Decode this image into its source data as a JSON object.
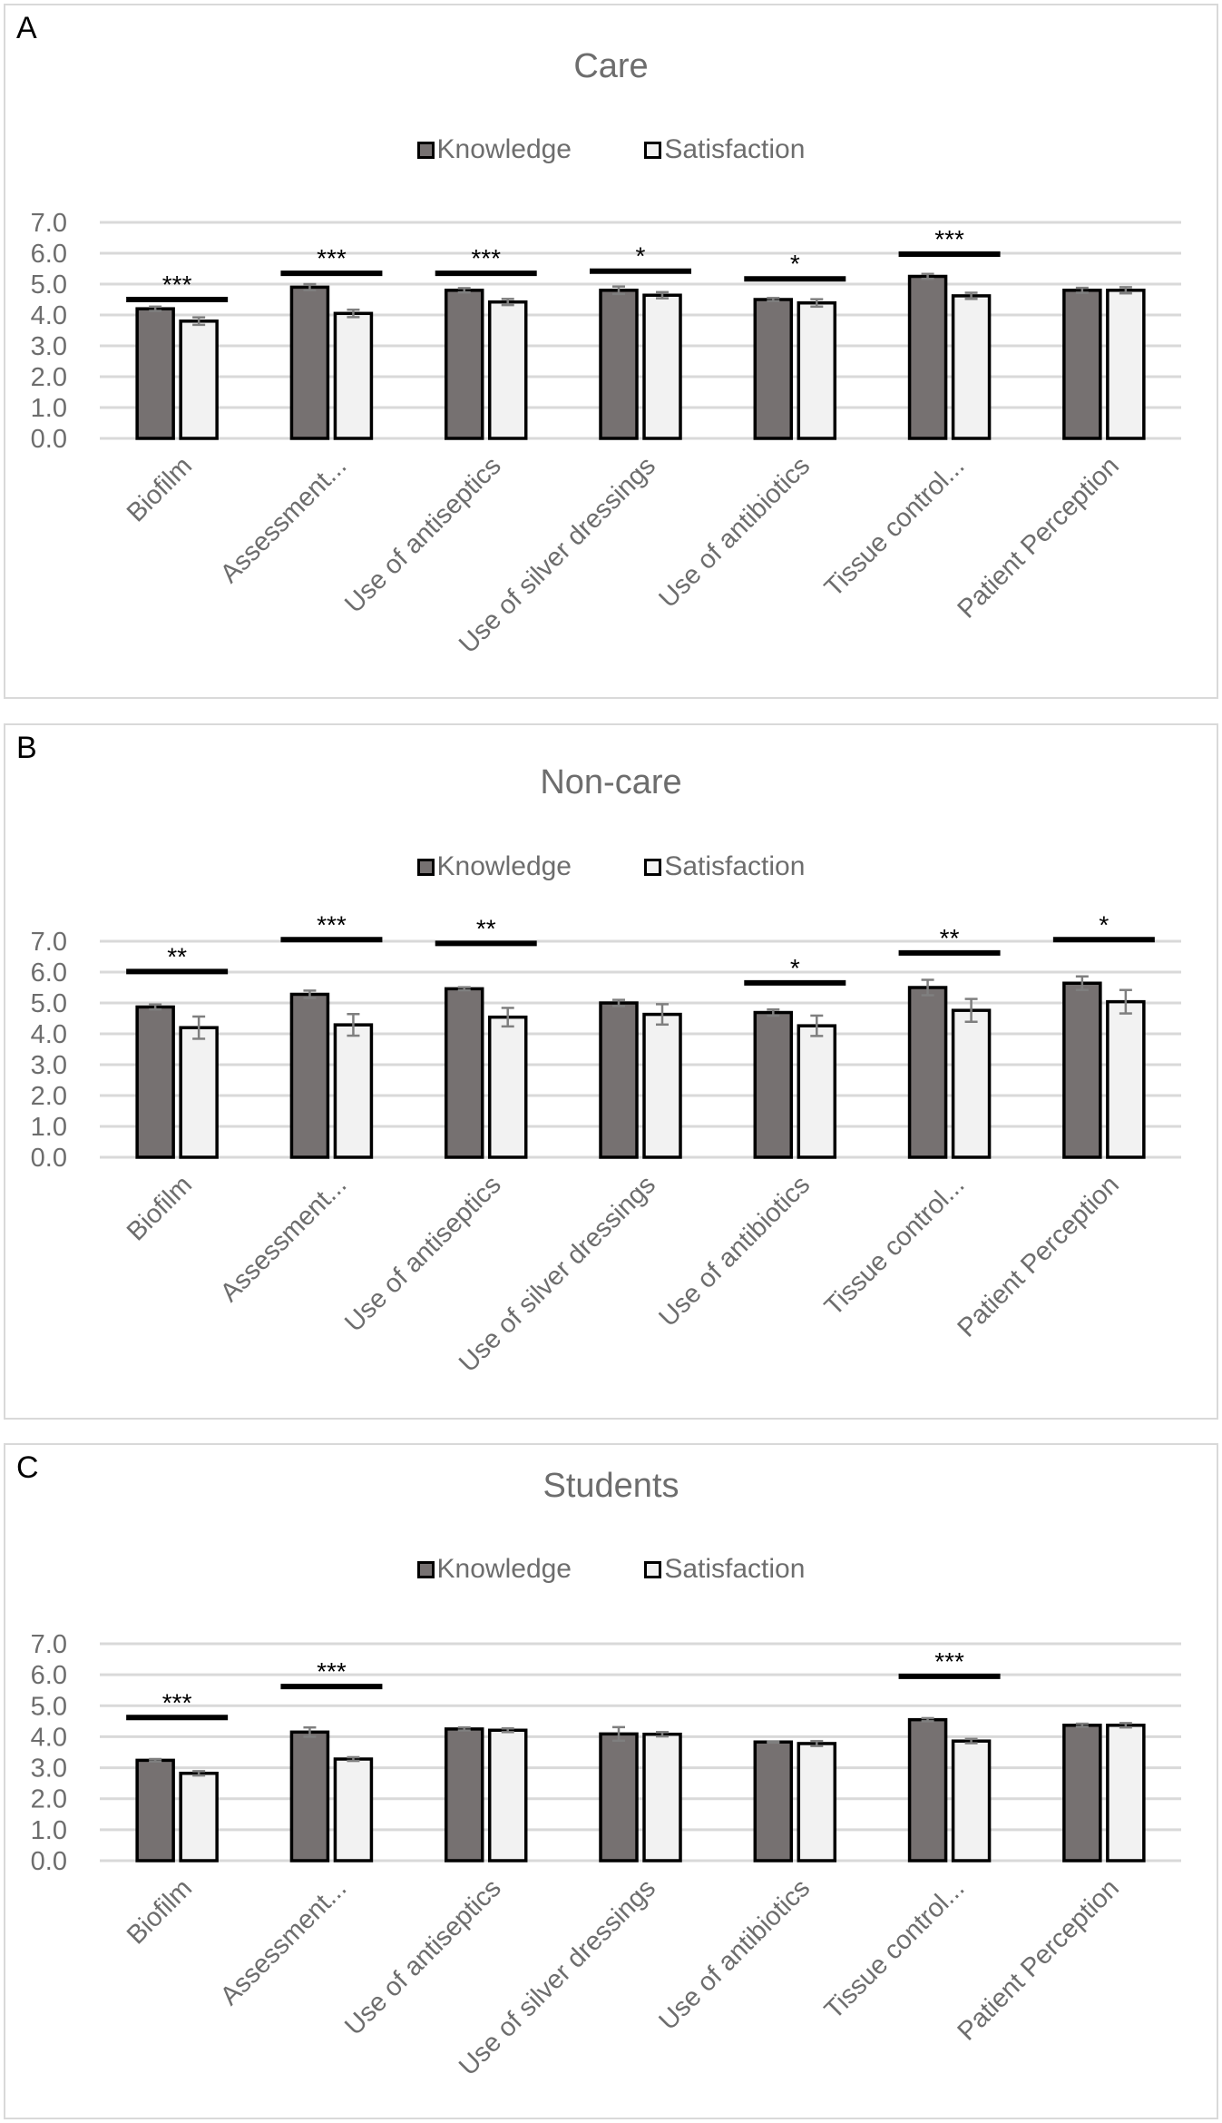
{
  "colors": {
    "knowledge": "#767171",
    "satisfaction": "#f2f2f2",
    "outline": "#000000",
    "errorbar": "#7f7f7f",
    "grid": "#d9d9d9",
    "text": "#6d6d6d"
  },
  "legend": {
    "knowledge": "Knowledge",
    "satisfaction": "Satisfaction"
  },
  "chart_data": [
    {
      "panel": "A",
      "type": "bar",
      "title": "Care",
      "xlabel": "",
      "ylabel": "",
      "ylim": [
        0,
        7
      ],
      "yticks": [
        "0.0",
        "1.0",
        "2.0",
        "3.0",
        "4.0",
        "5.0",
        "6.0",
        "7.0"
      ],
      "grid": true,
      "legend_position": "top-center",
      "categories": [
        "Biofilm",
        "Assessment...",
        "Use of antiseptics",
        "Use of silver dressings",
        "Use of antibiotics",
        "Tissue control...",
        "Patient Perception"
      ],
      "series": [
        {
          "name": "Knowledge",
          "values": [
            4.2,
            4.9,
            4.8,
            4.8,
            4.5,
            5.25,
            4.8
          ],
          "errors": [
            0.07,
            0.1,
            0.07,
            0.12,
            0.05,
            0.08,
            0.08
          ]
        },
        {
          "name": "Satisfaction",
          "values": [
            3.8,
            4.05,
            4.42,
            4.64,
            4.39,
            4.62,
            4.8
          ],
          "errors": [
            0.12,
            0.12,
            0.1,
            0.1,
            0.12,
            0.1,
            0.1
          ]
        }
      ],
      "significance": [
        {
          "category": 0,
          "label": "***",
          "y": 4.5
        },
        {
          "category": 1,
          "label": "***",
          "y": 5.35
        },
        {
          "category": 2,
          "label": "***",
          "y": 5.35
        },
        {
          "category": 3,
          "label": "*",
          "y": 5.42
        },
        {
          "category": 4,
          "label": "*",
          "y": 5.17
        },
        {
          "category": 5,
          "label": "***",
          "y": 5.97
        }
      ]
    },
    {
      "panel": "B",
      "type": "bar",
      "title": "Non-care",
      "xlabel": "",
      "ylabel": "",
      "ylim": [
        0,
        7
      ],
      "yticks": [
        "0.0",
        "1.0",
        "2.0",
        "3.0",
        "4.0",
        "5.0",
        "6.0",
        "7.0"
      ],
      "grid": true,
      "legend_position": "top-center",
      "categories": [
        "Biofilm",
        "Assessment...",
        "Use of antiseptics",
        "Use of silver dressings",
        "Use of antibiotics",
        "Tissue control...",
        "Patient Perception"
      ],
      "series": [
        {
          "name": "Knowledge",
          "values": [
            4.87,
            5.28,
            5.46,
            5.0,
            4.69,
            5.5,
            5.64
          ],
          "errors": [
            0.08,
            0.12,
            0.05,
            0.1,
            0.1,
            0.25,
            0.22
          ]
        },
        {
          "name": "Satisfaction",
          "values": [
            4.2,
            4.29,
            4.54,
            4.63,
            4.26,
            4.76,
            5.04
          ],
          "errors": [
            0.36,
            0.35,
            0.3,
            0.33,
            0.33,
            0.37,
            0.38
          ]
        }
      ],
      "significance": [
        {
          "category": 0,
          "label": "**",
          "y": 6.02
        },
        {
          "category": 1,
          "label": "***",
          "y": 7.05
        },
        {
          "category": 2,
          "label": "**",
          "y": 6.93
        },
        {
          "category": 4,
          "label": "*",
          "y": 5.65
        },
        {
          "category": 5,
          "label": "**",
          "y": 6.62
        },
        {
          "category": 6,
          "label": "*",
          "y": 7.05
        }
      ]
    },
    {
      "panel": "C",
      "type": "bar",
      "title": "Students",
      "xlabel": "",
      "ylabel": "",
      "ylim": [
        0,
        7
      ],
      "yticks": [
        "0.0",
        "1.0",
        "2.0",
        "3.0",
        "4.0",
        "5.0",
        "6.0",
        "7.0"
      ],
      "grid": true,
      "legend_position": "top-center",
      "categories": [
        "Biofilm",
        "Assessment...",
        "Use of antiseptics",
        "Use of silver dressings",
        "Use of antibiotics",
        "Tissue control...",
        "Patient Perception"
      ],
      "series": [
        {
          "name": "Knowledge",
          "values": [
            3.24,
            4.15,
            4.25,
            4.09,
            3.83,
            4.55,
            4.37
          ],
          "errors": [
            0.04,
            0.15,
            0.05,
            0.22,
            0.02,
            0.05,
            0.05
          ]
        },
        {
          "name": "Satisfaction",
          "values": [
            2.82,
            3.28,
            4.21,
            4.08,
            3.78,
            3.86,
            4.37
          ],
          "errors": [
            0.07,
            0.06,
            0.06,
            0.07,
            0.08,
            0.07,
            0.07
          ]
        }
      ],
      "significance": [
        {
          "category": 0,
          "label": "***",
          "y": 4.62
        },
        {
          "category": 1,
          "label": "***",
          "y": 5.62
        },
        {
          "category": 5,
          "label": "***",
          "y": 5.95
        }
      ]
    }
  ]
}
